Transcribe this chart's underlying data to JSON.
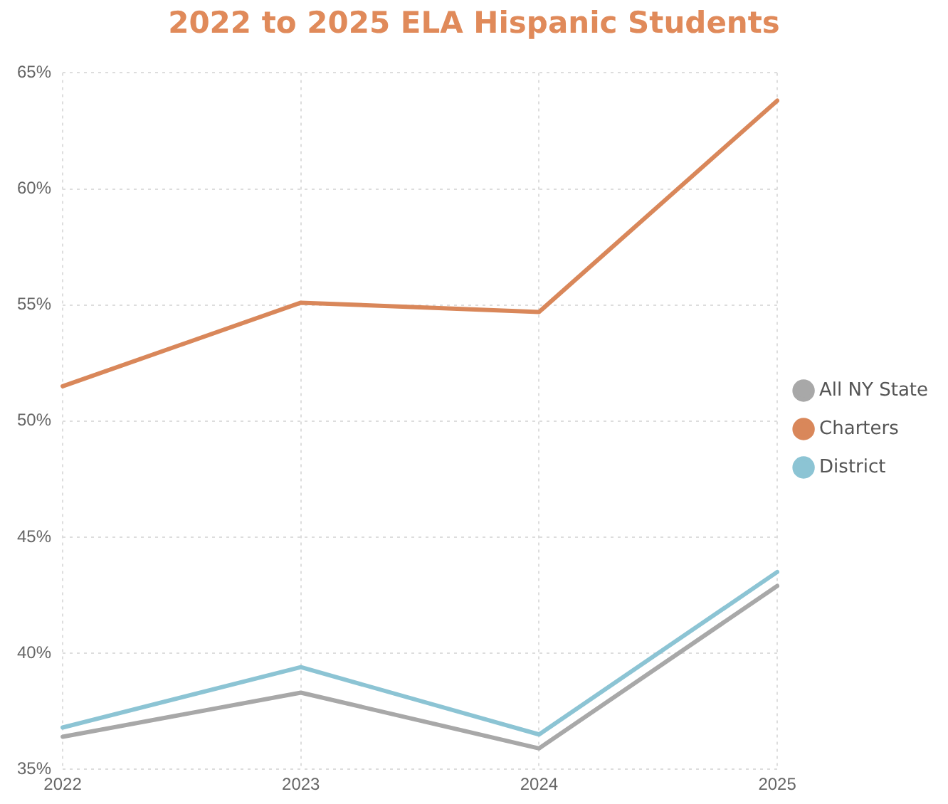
{
  "chart_data": {
    "type": "line",
    "title": "2022 to 2025 ELA Hispanic Students",
    "categories": [
      "2022",
      "2023",
      "2024",
      "2025"
    ],
    "series": [
      {
        "name": "All NY State",
        "color": "#a8a8a8",
        "values": [
          36.4,
          38.3,
          35.9,
          42.9
        ]
      },
      {
        "name": "Charters",
        "color": "#d9875a",
        "values": [
          51.5,
          55.1,
          54.7,
          63.8
        ]
      },
      {
        "name": "District",
        "color": "#8cc4d4",
        "values": [
          36.8,
          39.4,
          36.5,
          43.5
        ]
      }
    ],
    "ylim": [
      35,
      65
    ],
    "yticks": [
      {
        "value": 35,
        "label": "35%"
      },
      {
        "value": 40,
        "label": "40%"
      },
      {
        "value": 45,
        "label": "45%"
      },
      {
        "value": 50,
        "label": "50%"
      },
      {
        "value": 55,
        "label": "55%"
      },
      {
        "value": 60,
        "label": "60%"
      },
      {
        "value": 65,
        "label": "65%"
      }
    ],
    "grid": true,
    "legend": "right",
    "marker": "none",
    "line_style": "solid"
  }
}
